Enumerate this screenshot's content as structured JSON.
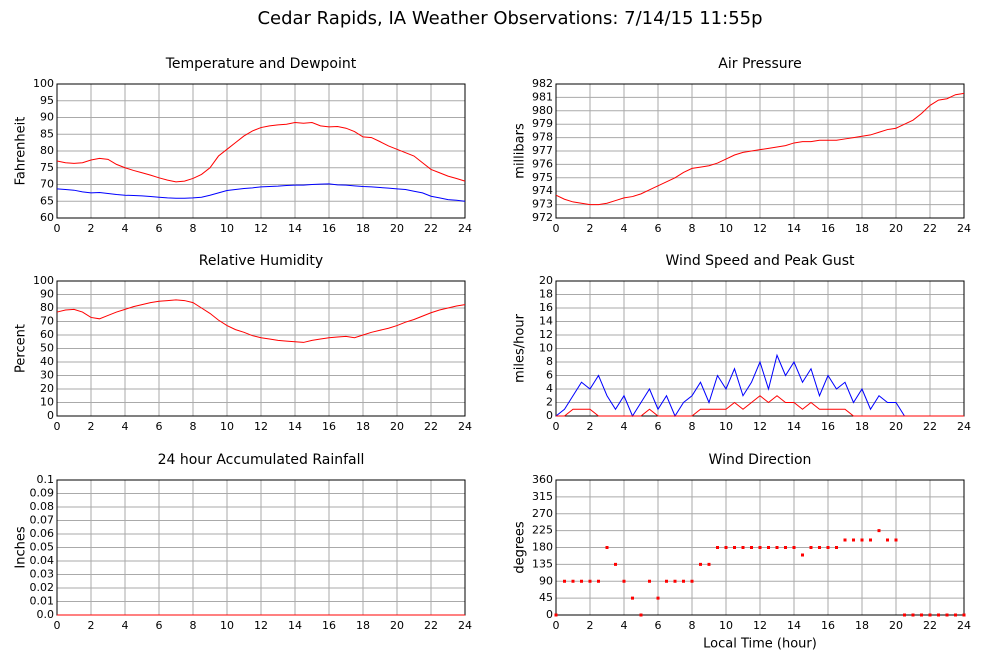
{
  "title": "Cedar Rapids, IA Weather Observations: 7/14/15 11:55p",
  "chart_data": [
    {
      "type": "line",
      "title": "Temperature and Dewpoint",
      "y_label": "Fahrenheit",
      "x": [
        0,
        0.5,
        1,
        1.5,
        2,
        2.5,
        3,
        3.5,
        4,
        4.5,
        5,
        5.5,
        6,
        6.5,
        7,
        7.5,
        8,
        8.5,
        9,
        9.5,
        10,
        10.5,
        11,
        11.5,
        12,
        12.5,
        13,
        13.5,
        14,
        14.5,
        15,
        15.5,
        16,
        16.5,
        17,
        17.5,
        18,
        18.5,
        19,
        19.5,
        20,
        20.5,
        21,
        21.5,
        22,
        22.5,
        23,
        23.5,
        24
      ],
      "series": [
        {
          "color": "#ff0000",
          "values": [
            77,
            76.5,
            76.3,
            76.5,
            77.3,
            77.8,
            77.5,
            76,
            75,
            74.2,
            73.5,
            72.8,
            72,
            71.3,
            70.8,
            71,
            71.8,
            73,
            75,
            78.5,
            80.5,
            82.5,
            84.5,
            86,
            87,
            87.5,
            87.8,
            88,
            88.5,
            88.3,
            88.5,
            87.5,
            87.2,
            87.3,
            86.8,
            85.8,
            84.2,
            84,
            82.8,
            81.5,
            80.5,
            79.5,
            78.5,
            76.5,
            74.5,
            73.5,
            72.5,
            71.8,
            71
          ]
        },
        {
          "color": "#0000ff",
          "values": [
            68.7,
            68.5,
            68.3,
            67.8,
            67.5,
            67.6,
            67.3,
            67,
            66.8,
            66.7,
            66.6,
            66.4,
            66.2,
            66,
            65.9,
            65.9,
            66,
            66.2,
            66.8,
            67.5,
            68.2,
            68.5,
            68.8,
            69,
            69.3,
            69.4,
            69.5,
            69.7,
            69.8,
            69.8,
            70,
            70.1,
            70.2,
            69.9,
            69.8,
            69.6,
            69.4,
            69.3,
            69.1,
            68.9,
            68.7,
            68.5,
            68,
            67.5,
            66.5,
            66,
            65.5,
            65.3,
            65
          ]
        }
      ],
      "xlim": [
        0,
        24
      ],
      "xticks": [
        0,
        2,
        4,
        6,
        8,
        10,
        12,
        14,
        16,
        18,
        20,
        22,
        24
      ],
      "ylim": [
        60,
        100
      ],
      "yticks": [
        60,
        65,
        70,
        75,
        80,
        85,
        90,
        95,
        100
      ],
      "grid": true
    },
    {
      "type": "line",
      "title": "Air Pressure",
      "y_label": "millibars",
      "x": [
        0,
        0.5,
        1,
        1.5,
        2,
        2.5,
        3,
        3.5,
        4,
        4.5,
        5,
        5.5,
        6,
        6.5,
        7,
        7.5,
        8,
        8.5,
        9,
        9.5,
        10,
        10.5,
        11,
        11.5,
        12,
        12.5,
        13,
        13.5,
        14,
        14.5,
        15,
        15.5,
        16,
        16.5,
        17,
        17.5,
        18,
        18.5,
        19,
        19.5,
        20,
        20.5,
        21,
        21.5,
        22,
        22.5,
        23,
        23.5,
        24
      ],
      "series": [
        {
          "color": "#ff0000",
          "values": [
            973.7,
            973.4,
            973.2,
            973.1,
            973.0,
            973.0,
            973.1,
            973.3,
            973.5,
            973.6,
            973.8,
            974.1,
            974.4,
            974.7,
            975.0,
            975.4,
            975.7,
            975.8,
            975.9,
            976.1,
            976.4,
            976.7,
            976.9,
            977.0,
            977.1,
            977.2,
            977.3,
            977.4,
            977.6,
            977.7,
            977.7,
            977.8,
            977.8,
            977.8,
            977.9,
            978.0,
            978.1,
            978.2,
            978.4,
            978.6,
            978.7,
            979.0,
            979.3,
            979.8,
            980.4,
            980.8,
            980.9,
            981.2,
            981.3
          ]
        }
      ],
      "xlim": [
        0,
        24
      ],
      "xticks": [
        0,
        2,
        4,
        6,
        8,
        10,
        12,
        14,
        16,
        18,
        20,
        22,
        24
      ],
      "ylim": [
        972,
        982
      ],
      "yticks": [
        972,
        973,
        974,
        975,
        976,
        977,
        978,
        979,
        980,
        981,
        982
      ],
      "grid": true
    },
    {
      "type": "line",
      "title": "Relative Humidity",
      "y_label": "Percent",
      "x": [
        0,
        0.5,
        1,
        1.5,
        2,
        2.5,
        3,
        3.5,
        4,
        4.5,
        5,
        5.5,
        6,
        6.5,
        7,
        7.5,
        8,
        8.5,
        9,
        9.5,
        10,
        10.5,
        11,
        11.5,
        12,
        12.5,
        13,
        13.5,
        14,
        14.5,
        15,
        15.5,
        16,
        16.5,
        17,
        17.5,
        18,
        18.5,
        19,
        19.5,
        20,
        20.5,
        21,
        21.5,
        22,
        22.5,
        23,
        23.5,
        24
      ],
      "series": [
        {
          "color": "#ff0000",
          "values": [
            77,
            78.5,
            79,
            77,
            73,
            72,
            74.5,
            77,
            79,
            81,
            82.5,
            84,
            85,
            85.5,
            86,
            85.5,
            84,
            80,
            76,
            71,
            67,
            64,
            62,
            59.5,
            58,
            57,
            56,
            55.5,
            55,
            54.5,
            56,
            57,
            58,
            58.5,
            59,
            58,
            60,
            62,
            63.5,
            65,
            67,
            69.5,
            71.5,
            74,
            76.5,
            78.5,
            80,
            81.5,
            82.5
          ]
        }
      ],
      "xlim": [
        0,
        24
      ],
      "xticks": [
        0,
        2,
        4,
        6,
        8,
        10,
        12,
        14,
        16,
        18,
        20,
        22,
        24
      ],
      "ylim": [
        0,
        100
      ],
      "yticks": [
        0,
        10,
        20,
        30,
        40,
        50,
        60,
        70,
        80,
        90,
        100
      ],
      "grid": true
    },
    {
      "type": "line",
      "title": "Wind Speed and Peak Gust",
      "y_label": "miles/hour",
      "x": [
        0,
        0.5,
        1,
        1.5,
        2,
        2.5,
        3,
        3.5,
        4,
        4.5,
        5,
        5.5,
        6,
        6.5,
        7,
        7.5,
        8,
        8.5,
        9,
        9.5,
        10,
        10.5,
        11,
        11.5,
        12,
        12.5,
        13,
        13.5,
        14,
        14.5,
        15,
        15.5,
        16,
        16.5,
        17,
        17.5,
        18,
        18.5,
        19,
        19.5,
        20,
        20.5,
        21,
        21.5,
        22,
        22.5,
        23,
        23.5,
        24
      ],
      "series": [
        {
          "color": "#0000ff",
          "values": [
            0,
            1,
            3,
            5,
            4,
            6,
            3,
            1,
            3,
            0,
            2,
            4,
            1,
            3,
            0,
            2,
            3,
            5,
            2,
            6,
            4,
            7,
            3,
            5,
            8,
            4,
            9,
            6,
            8,
            5,
            7,
            3,
            6,
            4,
            5,
            2,
            4,
            1,
            3,
            2,
            2,
            0,
            0,
            0,
            0,
            0,
            0,
            0,
            0
          ]
        },
        {
          "color": "#ff0000",
          "values": [
            0,
            0,
            1,
            1,
            1,
            0,
            0,
            0,
            0,
            0,
            0,
            1,
            0,
            0,
            0,
            0,
            0,
            1,
            1,
            1,
            1,
            2,
            1,
            2,
            3,
            2,
            3,
            2,
            2,
            1,
            2,
            1,
            1,
            1,
            1,
            0,
            0,
            0,
            0,
            0,
            0,
            0,
            0,
            0,
            0,
            0,
            0,
            0,
            0
          ]
        }
      ],
      "xlim": [
        0,
        24
      ],
      "xticks": [
        0,
        2,
        4,
        6,
        8,
        10,
        12,
        14,
        16,
        18,
        20,
        22,
        24
      ],
      "ylim": [
        0,
        20
      ],
      "yticks": [
        0,
        2,
        4,
        6,
        8,
        10,
        12,
        14,
        16,
        18,
        20
      ],
      "grid": true
    },
    {
      "type": "line",
      "title": "24 hour Accumulated Rainfall",
      "y_label": "Inches",
      "x": [
        0,
        24
      ],
      "series": [
        {
          "color": "#ff0000",
          "values": [
            0,
            0
          ]
        }
      ],
      "xlim": [
        0,
        24
      ],
      "xticks": [
        0,
        2,
        4,
        6,
        8,
        10,
        12,
        14,
        16,
        18,
        20,
        22,
        24
      ],
      "ylim": [
        0,
        0.1
      ],
      "yticks": [
        {
          "value": 0,
          "label": "0.0"
        },
        0.01,
        0.02,
        0.03,
        0.04,
        0.05,
        0.06,
        0.07,
        0.08,
        0.09,
        0.1
      ],
      "grid": true
    },
    {
      "type": "scatter",
      "title": "Wind Direction",
      "y_label": "degrees",
      "x_label": "Local Time (hour)",
      "x": [
        0,
        0.5,
        1,
        1.5,
        2,
        2.5,
        3,
        3.5,
        4,
        4.5,
        5,
        5.5,
        6,
        6.5,
        7,
        7.5,
        8,
        8.5,
        9,
        9.5,
        10,
        10.5,
        11,
        11.5,
        12,
        12.5,
        13,
        13.5,
        14,
        14.5,
        15,
        15.5,
        16,
        16.5,
        17,
        17.5,
        18,
        18.5,
        19,
        19.5,
        20,
        20.5,
        21,
        21.5,
        22,
        22.5,
        23,
        23.5,
        24
      ],
      "series": [
        {
          "color": "#ff0000",
          "values": [
            0,
            90,
            90,
            90,
            90,
            90,
            180,
            135,
            90,
            45,
            0,
            90,
            45,
            90,
            90,
            90,
            90,
            135,
            135,
            180,
            180,
            180,
            180,
            180,
            180,
            180,
            180,
            180,
            180,
            160,
            180,
            180,
            180,
            180,
            200,
            200,
            200,
            200,
            225,
            200,
            200,
            0,
            0,
            0,
            0,
            0,
            0,
            0,
            0
          ]
        }
      ],
      "xlim": [
        0,
        24
      ],
      "xticks": [
        0,
        2,
        4,
        6,
        8,
        10,
        12,
        14,
        16,
        18,
        20,
        22,
        24
      ],
      "ylim": [
        0,
        360
      ],
      "yticks": [
        0,
        45,
        90,
        135,
        180,
        225,
        270,
        315,
        360
      ],
      "grid": true
    }
  ]
}
